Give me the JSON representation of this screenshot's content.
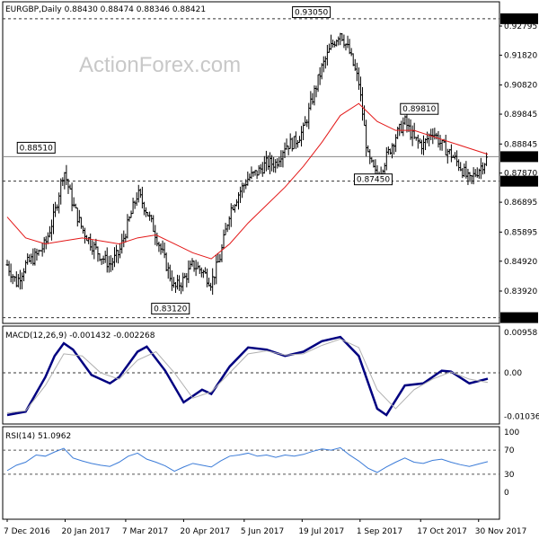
{
  "chart_data": [
    {
      "type": "candlestick",
      "title": "EURGBP,Daily",
      "ohlc_readout": "0.88430 0.88474 0.88346 0.88421",
      "watermark": "ActionForex.com",
      "x_tick_labels": [
        "7 Dec 2016",
        "20 Jan 2017",
        "7 Mar 2017",
        "20 Apr 2017",
        "5 Jun 2017",
        "19 Jul 2017",
        "1 Sep 2017",
        "17 Oct 2017",
        "30 Nov 2017"
      ],
      "y_tick_labels": [
        "0.92795",
        "0.91820",
        "0.90820",
        "0.89845",
        "0.88845",
        "0.87870",
        "0.86895",
        "0.85895",
        "0.84920",
        "0.83920"
      ],
      "ylim": [
        0.8288,
        0.9342
      ],
      "highlight_labels": [
        {
          "text": "0.93040",
          "value": 0.9304,
          "style": "filled"
        },
        {
          "text": "0.88421",
          "value": 0.88421,
          "style": "filled"
        },
        {
          "text": "0.87600",
          "value": 0.876,
          "style": "filled"
        },
        {
          "text": "0.83030",
          "value": 0.8303,
          "style": "filled"
        }
      ],
      "reference_lines": [
        0.9304,
        0.88421,
        0.876,
        0.8303
      ],
      "annotations": [
        {
          "text": "0.93050",
          "value": 0.9305,
          "date": "2017-07-26"
        },
        {
          "text": "0.88510",
          "value": 0.8851,
          "date": "2016-12-29"
        },
        {
          "text": "0.87450",
          "value": 0.8745,
          "date": "2017-09-11"
        },
        {
          "text": "0.89810",
          "value": 0.8981,
          "date": "2017-10-16"
        },
        {
          "text": "0.83120",
          "value": 0.8312,
          "date": "2017-04-10"
        }
      ],
      "series": [
        {
          "name": "close",
          "color": "#000000",
          "points": [
            [
              "2016-12-07",
              0.848
            ],
            [
              "2016-12-14",
              0.842
            ],
            [
              "2016-12-21",
              0.848
            ],
            [
              "2016-12-29",
              0.851
            ],
            [
              "2017-01-05",
              0.855
            ],
            [
              "2017-01-12",
              0.865
            ],
            [
              "2017-01-19",
              0.88
            ],
            [
              "2017-01-26",
              0.868
            ],
            [
              "2017-02-02",
              0.86
            ],
            [
              "2017-02-09",
              0.855
            ],
            [
              "2017-02-16",
              0.851
            ],
            [
              "2017-02-23",
              0.848
            ],
            [
              "2017-03-02",
              0.852
            ],
            [
              "2017-03-09",
              0.862
            ],
            [
              "2017-03-16",
              0.872
            ],
            [
              "2017-03-23",
              0.866
            ],
            [
              "2017-03-30",
              0.858
            ],
            [
              "2017-04-06",
              0.849
            ],
            [
              "2017-04-13",
              0.84
            ],
            [
              "2017-04-20",
              0.843
            ],
            [
              "2017-04-27",
              0.848
            ],
            [
              "2017-05-04",
              0.846
            ],
            [
              "2017-05-11",
              0.842
            ],
            [
              "2017-05-18",
              0.851
            ],
            [
              "2017-05-25",
              0.866
            ],
            [
              "2017-06-01",
              0.872
            ],
            [
              "2017-06-08",
              0.877
            ],
            [
              "2017-06-15",
              0.879
            ],
            [
              "2017-06-22",
              0.882
            ],
            [
              "2017-06-29",
              0.882
            ],
            [
              "2017-07-06",
              0.888
            ],
            [
              "2017-07-13",
              0.889
            ],
            [
              "2017-07-20",
              0.893
            ],
            [
              "2017-07-27",
              0.904
            ],
            [
              "2017-08-03",
              0.914
            ],
            [
              "2017-08-10",
              0.921
            ],
            [
              "2017-08-17",
              0.926
            ],
            [
              "2017-08-24",
              0.919
            ],
            [
              "2017-08-31",
              0.909
            ],
            [
              "2017-09-07",
              0.884
            ],
            [
              "2017-09-14",
              0.877
            ],
            [
              "2017-09-21",
              0.884
            ],
            [
              "2017-09-28",
              0.891
            ],
            [
              "2017-10-05",
              0.896
            ],
            [
              "2017-10-12",
              0.89
            ],
            [
              "2017-10-19",
              0.888
            ],
            [
              "2017-10-26",
              0.893
            ],
            [
              "2017-11-02",
              0.888
            ],
            [
              "2017-11-09",
              0.885
            ],
            [
              "2017-11-16",
              0.881
            ],
            [
              "2017-11-23",
              0.876
            ],
            [
              "2017-11-30",
              0.88
            ],
            [
              "2017-12-07",
              0.884
            ]
          ]
        },
        {
          "name": "moving average",
          "color": "#e31818",
          "points": [
            [
              "2016-12-07",
              0.864
            ],
            [
              "2016-12-21",
              0.857
            ],
            [
              "2017-01-05",
              0.855
            ],
            [
              "2017-01-19",
              0.856
            ],
            [
              "2017-02-02",
              0.857
            ],
            [
              "2017-02-16",
              0.856
            ],
            [
              "2017-03-02",
              0.855
            ],
            [
              "2017-03-16",
              0.857
            ],
            [
              "2017-03-30",
              0.858
            ],
            [
              "2017-04-13",
              0.855
            ],
            [
              "2017-04-27",
              0.852
            ],
            [
              "2017-05-11",
              0.85
            ],
            [
              "2017-05-25",
              0.855
            ],
            [
              "2017-06-08",
              0.862
            ],
            [
              "2017-06-22",
              0.868
            ],
            [
              "2017-07-06",
              0.874
            ],
            [
              "2017-07-20",
              0.881
            ],
            [
              "2017-08-03",
              0.889
            ],
            [
              "2017-08-17",
              0.898
            ],
            [
              "2017-08-31",
              0.902
            ],
            [
              "2017-09-14",
              0.896
            ],
            [
              "2017-09-28",
              0.893
            ],
            [
              "2017-10-12",
              0.893
            ],
            [
              "2017-10-26",
              0.891
            ],
            [
              "2017-11-09",
              0.889
            ],
            [
              "2017-11-23",
              0.887
            ],
            [
              "2017-12-07",
              0.885
            ]
          ]
        }
      ]
    },
    {
      "type": "line",
      "title": "MACD(12,26,9) -0.001432 -0.002268",
      "y_tick_labels": [
        "0.00958",
        "0.00",
        "-0.010362"
      ],
      "ylim": [
        -0.0115,
        0.0108
      ],
      "reference_lines": [
        0
      ],
      "series": [
        {
          "name": "MACD",
          "color": "#000080",
          "points": [
            [
              "2016-12-07",
              -0.01
            ],
            [
              "2016-12-21",
              -0.0092
            ],
            [
              "2017-01-05",
              -0.001
            ],
            [
              "2017-01-12",
              0.004
            ],
            [
              "2017-01-19",
              0.007
            ],
            [
              "2017-01-26",
              0.0055
            ],
            [
              "2017-02-09",
              -0.0005
            ],
            [
              "2017-02-23",
              -0.0025
            ],
            [
              "2017-03-02",
              -0.001
            ],
            [
              "2017-03-16",
              0.005
            ],
            [
              "2017-03-23",
              0.0062
            ],
            [
              "2017-04-06",
              0.0005
            ],
            [
              "2017-04-20",
              -0.007
            ],
            [
              "2017-05-04",
              -0.004
            ],
            [
              "2017-05-11",
              -0.005
            ],
            [
              "2017-05-25",
              0.0015
            ],
            [
              "2017-06-08",
              0.006
            ],
            [
              "2017-06-22",
              0.0055
            ],
            [
              "2017-07-06",
              0.004
            ],
            [
              "2017-07-20",
              0.005
            ],
            [
              "2017-08-03",
              0.0075
            ],
            [
              "2017-08-17",
              0.0085
            ],
            [
              "2017-08-31",
              0.004
            ],
            [
              "2017-09-14",
              -0.0085
            ],
            [
              "2017-09-21",
              -0.01
            ],
            [
              "2017-10-05",
              -0.003
            ],
            [
              "2017-10-19",
              -0.0025
            ],
            [
              "2017-11-02",
              0.0005
            ],
            [
              "2017-11-09",
              0.0003
            ],
            [
              "2017-11-23",
              -0.0025
            ],
            [
              "2017-12-07",
              -0.0014
            ]
          ]
        },
        {
          "name": "signal",
          "color": "#b0b0b0",
          "points": [
            [
              "2016-12-07",
              -0.0095
            ],
            [
              "2016-12-21",
              -0.009
            ],
            [
              "2017-01-05",
              -0.003
            ],
            [
              "2017-01-19",
              0.0045
            ],
            [
              "2017-02-02",
              0.004
            ],
            [
              "2017-02-16",
              0.0
            ],
            [
              "2017-03-02",
              -0.0015
            ],
            [
              "2017-03-16",
              0.003
            ],
            [
              "2017-03-30",
              0.005
            ],
            [
              "2017-04-13",
              0.0
            ],
            [
              "2017-04-27",
              -0.006
            ],
            [
              "2017-05-11",
              -0.0045
            ],
            [
              "2017-05-25",
              0.0
            ],
            [
              "2017-06-08",
              0.0045
            ],
            [
              "2017-06-22",
              0.0052
            ],
            [
              "2017-07-06",
              0.0042
            ],
            [
              "2017-07-20",
              0.0045
            ],
            [
              "2017-08-03",
              0.0065
            ],
            [
              "2017-08-17",
              0.008
            ],
            [
              "2017-08-31",
              0.006
            ],
            [
              "2017-09-14",
              -0.004
            ],
            [
              "2017-09-28",
              -0.0085
            ],
            [
              "2017-10-12",
              -0.004
            ],
            [
              "2017-10-26",
              -0.0015
            ],
            [
              "2017-11-09",
              0.0002
            ],
            [
              "2017-11-23",
              -0.0015
            ],
            [
              "2017-12-07",
              -0.0023
            ]
          ]
        }
      ]
    },
    {
      "type": "line",
      "title": "RSI(14) 51.0962",
      "y_tick_labels": [
        "100",
        "70",
        "30",
        "0"
      ],
      "ylim": [
        0,
        100
      ],
      "reference_lines": [
        70,
        30
      ],
      "series": [
        {
          "name": "RSI",
          "color": "#3c7cd8",
          "points": [
            [
              "2016-12-07",
              36
            ],
            [
              "2016-12-14",
              45
            ],
            [
              "2016-12-21",
              50
            ],
            [
              "2016-12-29",
              62
            ],
            [
              "2017-01-05",
              60
            ],
            [
              "2017-01-12",
              67
            ],
            [
              "2017-01-19",
              73
            ],
            [
              "2017-01-26",
              57
            ],
            [
              "2017-02-02",
              52
            ],
            [
              "2017-02-09",
              48
            ],
            [
              "2017-02-16",
              45
            ],
            [
              "2017-02-23",
              43
            ],
            [
              "2017-03-02",
              50
            ],
            [
              "2017-03-09",
              60
            ],
            [
              "2017-03-16",
              65
            ],
            [
              "2017-03-23",
              55
            ],
            [
              "2017-03-30",
              50
            ],
            [
              "2017-04-06",
              44
            ],
            [
              "2017-04-13",
              35
            ],
            [
              "2017-04-20",
              42
            ],
            [
              "2017-04-27",
              48
            ],
            [
              "2017-05-04",
              45
            ],
            [
              "2017-05-11",
              42
            ],
            [
              "2017-05-18",
              52
            ],
            [
              "2017-05-25",
              60
            ],
            [
              "2017-06-01",
              62
            ],
            [
              "2017-06-08",
              65
            ],
            [
              "2017-06-15",
              60
            ],
            [
              "2017-06-22",
              62
            ],
            [
              "2017-06-29",
              58
            ],
            [
              "2017-07-06",
              62
            ],
            [
              "2017-07-13",
              60
            ],
            [
              "2017-07-20",
              63
            ],
            [
              "2017-07-27",
              68
            ],
            [
              "2017-08-03",
              72
            ],
            [
              "2017-08-10",
              70
            ],
            [
              "2017-08-17",
              74
            ],
            [
              "2017-08-24",
              62
            ],
            [
              "2017-08-31",
              52
            ],
            [
              "2017-09-07",
              40
            ],
            [
              "2017-09-14",
              33
            ],
            [
              "2017-09-21",
              42
            ],
            [
              "2017-09-28",
              50
            ],
            [
              "2017-10-05",
              57
            ],
            [
              "2017-10-12",
              50
            ],
            [
              "2017-10-19",
              48
            ],
            [
              "2017-10-26",
              53
            ],
            [
              "2017-11-02",
              55
            ],
            [
              "2017-11-09",
              50
            ],
            [
              "2017-11-16",
              46
            ],
            [
              "2017-11-23",
              43
            ],
            [
              "2017-11-30",
              47
            ],
            [
              "2017-12-07",
              51
            ]
          ]
        }
      ]
    }
  ]
}
